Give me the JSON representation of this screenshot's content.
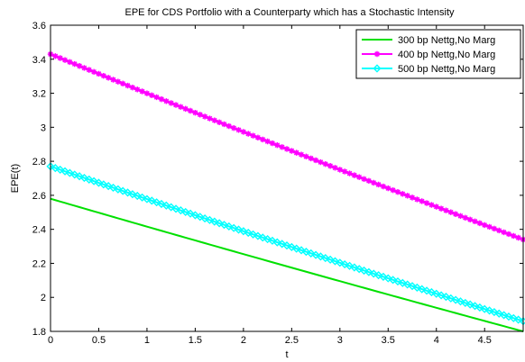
{
  "chart_data": {
    "type": "line",
    "title": "EPE for CDS Portfolio with a Counterparty which has a Stochastic Intensity",
    "xlabel": "t",
    "ylabel": "EPE(t)",
    "xlim": [
      0,
      4.9
    ],
    "ylim": [
      1.8,
      3.6
    ],
    "xticks": [
      0,
      0.5,
      1,
      1.5,
      2,
      2.5,
      3,
      3.5,
      4,
      4.5
    ],
    "xtick_labels": [
      "0",
      "0.5",
      "1",
      "1.5",
      "2",
      "2.5",
      "3",
      "3.5",
      "4",
      "4.5"
    ],
    "yticks": [
      1.8,
      2,
      2.2,
      2.4,
      2.6,
      2.8,
      3,
      3.2,
      3.4,
      3.6
    ],
    "ytick_labels": [
      "1.8",
      "2",
      "2.2",
      "2.4",
      "2.6",
      "2.8",
      "3",
      "3.2",
      "3.4",
      "3.6"
    ],
    "grid": false,
    "legend_position": "top-right",
    "x_step": 0.05,
    "series": [
      {
        "name": "300 bp Nettg,No Marg",
        "color": "#00e000",
        "marker": "none",
        "start": 2.58,
        "end": 1.8,
        "curvature": 0.03
      },
      {
        "name": "400 bp Nettg,No Marg",
        "color": "#ff00ff",
        "marker": "star",
        "start": 3.43,
        "end": 2.34,
        "curvature": 0.05
      },
      {
        "name": "500 bp Nettg,No Marg",
        "color": "#00ffff",
        "marker": "diamond",
        "start": 2.77,
        "end": 1.86,
        "curvature": 0.04
      }
    ]
  }
}
